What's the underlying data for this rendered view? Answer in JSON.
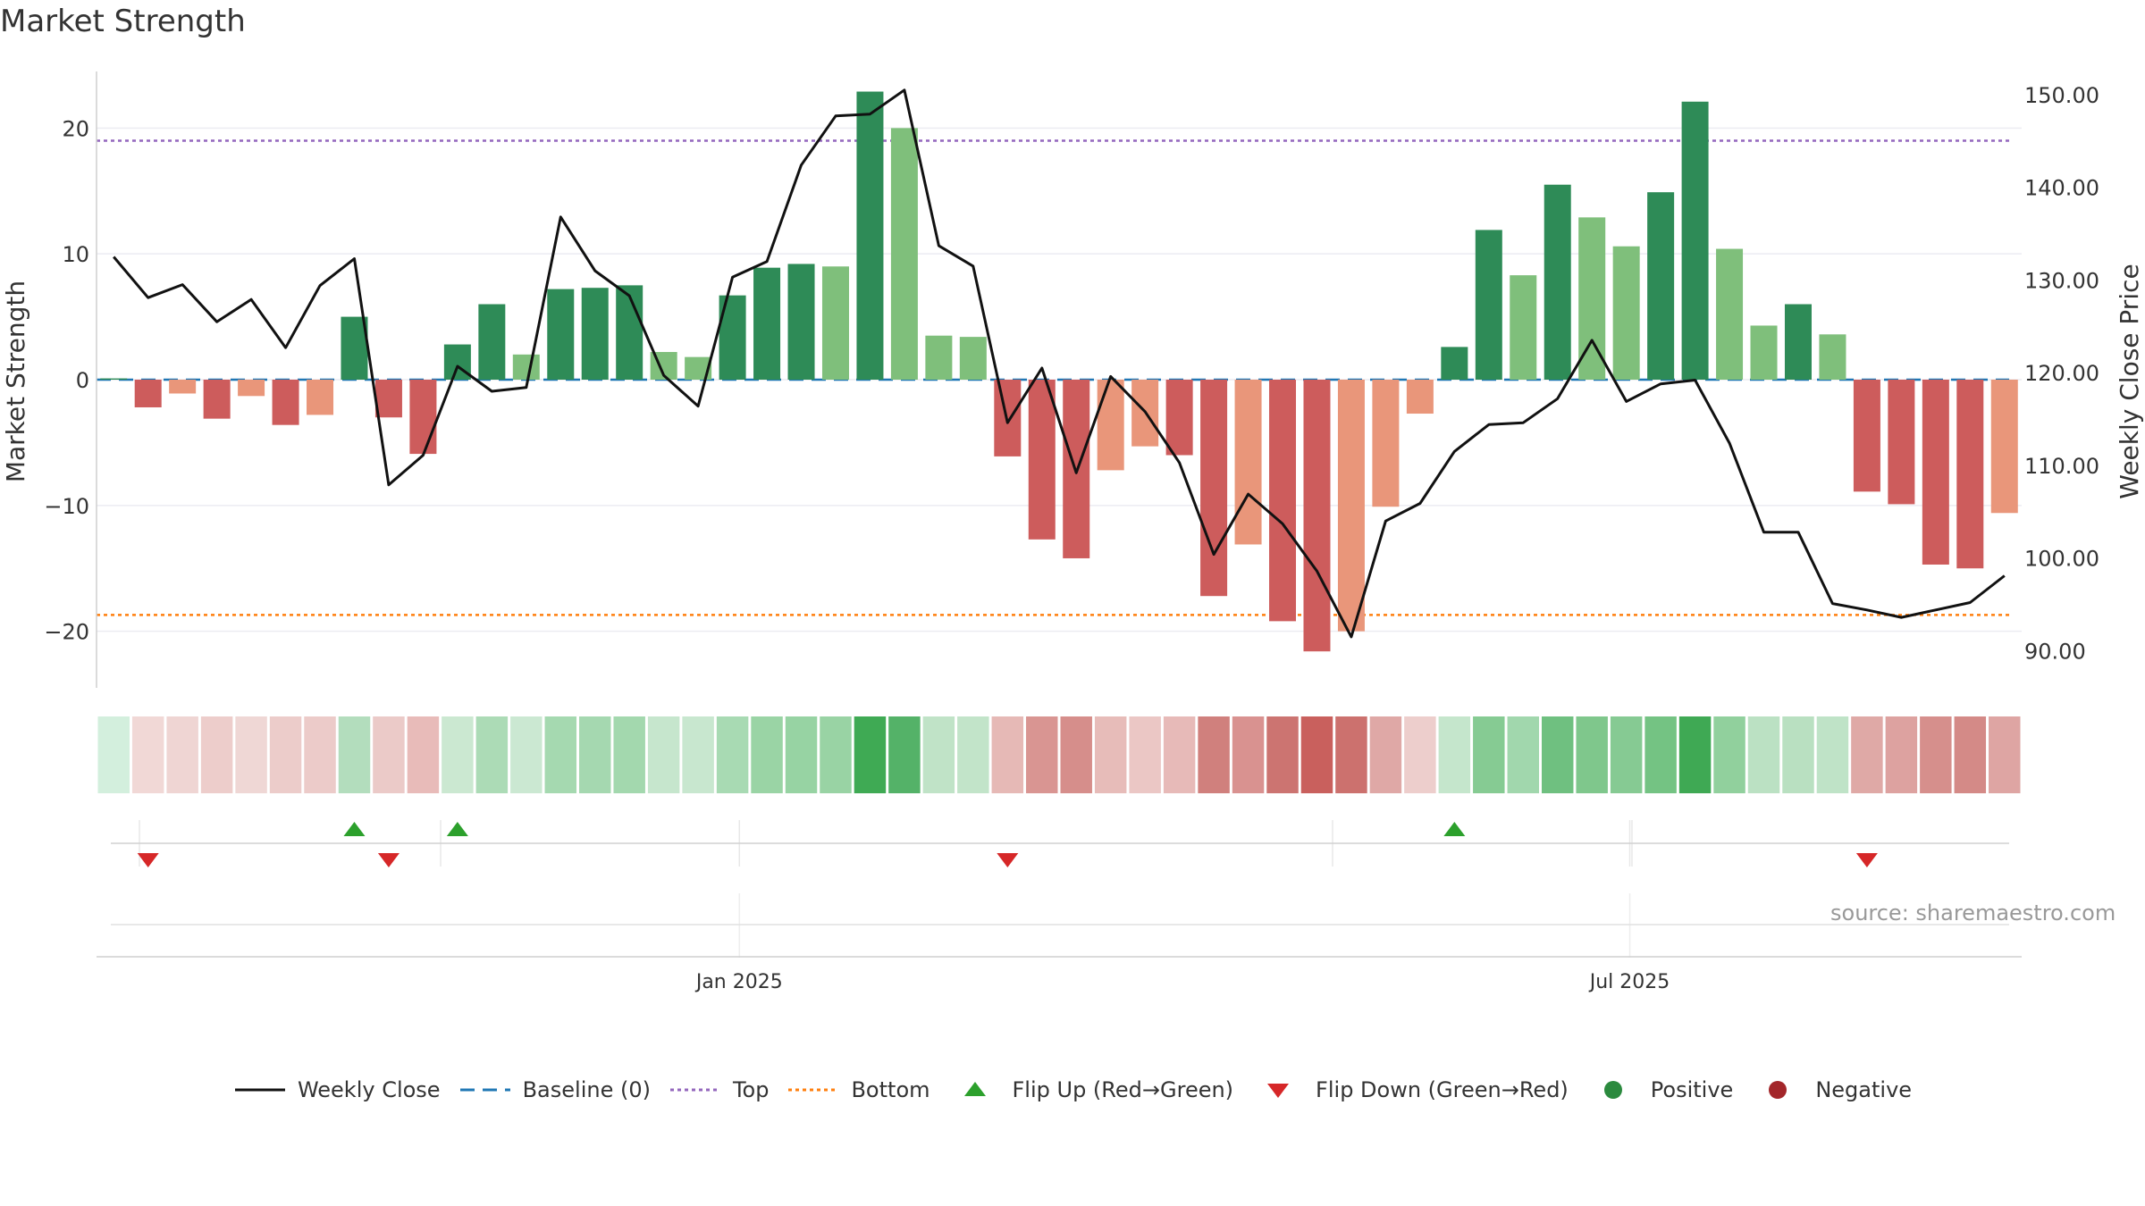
{
  "title": "Market Strength",
  "source": "source: sharemaestro.com",
  "legend": [
    {
      "label": "Weekly Close",
      "icon": "line-solid",
      "color": "#111111"
    },
    {
      "label": "Baseline (0)",
      "icon": "line-dashed",
      "color": "#1f77b4"
    },
    {
      "label": "Top",
      "icon": "line-dotted",
      "color": "#9467bd"
    },
    {
      "label": "Bottom",
      "icon": "line-dotted",
      "color": "#ff7f0e"
    },
    {
      "label": "Flip Up (Red→Green)",
      "icon": "triangle-up",
      "color": "#2ca02c"
    },
    {
      "label": "Flip Down (Green→Red)",
      "icon": "triangle-down",
      "color": "#d62728"
    },
    {
      "label": "Positive",
      "icon": "circle",
      "color": "#2b8a3e"
    },
    {
      "label": "Negative",
      "icon": "circle",
      "color": "#a3262a"
    }
  ],
  "chart_data": {
    "type": "bar",
    "title": "Market Strength",
    "ylabel": "Market Strength",
    "ylabel_right": "Weekly Close Price",
    "ylim": [
      -24.5,
      24.5
    ],
    "ylim_right": [
      86.0,
      152.5
    ],
    "yticks": [
      20,
      10,
      0,
      -10,
      -20
    ],
    "ytick_labels": [
      "20",
      "10",
      "0",
      "−10",
      "−20"
    ],
    "yticks_right": [
      150,
      140,
      130,
      120,
      110,
      100,
      90
    ],
    "ytick_labels_right": [
      "150.00",
      "140.00",
      "130.00",
      "120.00",
      "110.00",
      "100.00",
      "90.00"
    ],
    "x_tick_labels": [
      "Jan 2025",
      "Jul 2025"
    ],
    "x_tick_weeks": [
      18.7,
      44.6
    ],
    "reference_lines": {
      "baseline": 0,
      "top": 19,
      "bottom": -18.7
    },
    "colors": {
      "positive_strong": "#2e8b57",
      "positive_light": "#7fbf7b",
      "negative_strong": "#cd5c5c",
      "negative_light": "#e9967a",
      "close_line": "#111111",
      "baseline": "#1f77b4",
      "top": "#9467bd",
      "bottom": "#ff7f0e",
      "flip_up": "#2ca02c",
      "flip_down": "#d62728"
    },
    "series": [
      {
        "name": "Market Strength",
        "values": [
          0.1,
          -2.2,
          -1.1,
          -3.1,
          -1.3,
          -3.6,
          -2.8,
          5.0,
          -3.0,
          -5.9,
          2.8,
          6.0,
          2.0,
          7.2,
          7.3,
          7.5,
          2.2,
          1.8,
          6.7,
          8.9,
          9.2,
          9.0,
          22.9,
          20.0,
          3.5,
          3.4,
          -6.1,
          -12.7,
          -14.2,
          -7.2,
          -5.3,
          -6.0,
          -17.2,
          -13.1,
          -19.2,
          -21.6,
          -20.0,
          -10.1,
          -2.7,
          2.6,
          11.9,
          8.3,
          15.5,
          12.9,
          10.6,
          14.9,
          22.1,
          10.4,
          4.3,
          6.0,
          3.6,
          -8.9,
          -9.9,
          -14.7,
          -15.0,
          -10.6
        ]
      },
      {
        "name": "Weekly Close",
        "x": [
          0.5,
          1.5,
          2.5,
          3.5,
          4.5,
          5.5,
          6.5,
          7.5,
          8.5,
          9.5,
          10.5,
          11.5,
          12.5,
          13.5,
          14.5,
          15.5,
          16.5,
          17.5,
          18.5,
          19.5,
          20.5,
          21.5,
          22.5,
          23.5,
          24.5,
          25.5,
          26.5,
          27.5,
          28.5,
          29.5,
          30.5,
          31.5,
          32.5,
          33.5,
          34.5,
          35.5,
          36.5,
          37.5,
          38.5,
          39.5,
          40.5,
          41.5,
          42.5,
          43.5,
          44.5,
          45.5,
          46.5,
          47.5,
          48.5,
          49.5,
          50.5,
          51.5,
          52.5,
          53.5,
          54.5,
          55.5
        ],
        "values": [
          132.5,
          128.1,
          129.5,
          125.5,
          127.9,
          122.7,
          129.4,
          132.3,
          107.9,
          111.1,
          120.7,
          118.0,
          118.4,
          136.8,
          131.0,
          128.3,
          119.7,
          116.4,
          130.3,
          132.0,
          142.4,
          147.7,
          147.9,
          150.5,
          133.7,
          131.5,
          114.6,
          120.5,
          109.2,
          119.6,
          115.8,
          110.3,
          100.4,
          106.9,
          103.7,
          98.6,
          91.5,
          104.0,
          105.9,
          111.5,
          114.4,
          114.6,
          117.2,
          123.5,
          116.9,
          118.8,
          119.2,
          112.4,
          102.8,
          102.8,
          95.1,
          94.4,
          93.6,
          94.4,
          95.2,
          98.1
        ]
      }
    ],
    "heat_strip": [
      "#d3efdd",
      "#f1d8d6",
      "#efd5d3",
      "#edcdcb",
      "#efd7d5",
      "#ecccca",
      "#eccbc9",
      "#b3ddbd",
      "#ebcac8",
      "#e8bbb9",
      "#cbe8d1",
      "#acdbb6",
      "#cbe8d2",
      "#a5d9b0",
      "#a5d8b0",
      "#a3d8ae",
      "#c6e6cd",
      "#c8e7cf",
      "#a8dab3",
      "#9ad4a5",
      "#97d3a3",
      "#99d3a4",
      "#3faa54",
      "#54b268",
      "#c0e3c7",
      "#c2e4c9",
      "#e6b9b6",
      "#d99592",
      "#d68e8b",
      "#e7bcb9",
      "#ebc7c5",
      "#e7bab8",
      "#d0807d",
      "#d99290",
      "#cc7471",
      "#c9605d",
      "#cc716e",
      "#dfa8a6",
      "#edcecc",
      "#c5e6cc",
      "#86cb93",
      "#a1d7ad",
      "#6fc080",
      "#7fc78c",
      "#86ca93",
      "#74c383",
      "#3fa954",
      "#91d09d",
      "#bbe1c3",
      "#b9e0c1",
      "#bfe3c7",
      "#dfa9a6",
      "#dda2a0",
      "#d68f8c",
      "#d48a87",
      "#dea5a3"
    ],
    "flip_up_weeks": [
      7,
      10,
      39
    ],
    "flip_down_weeks": [
      1,
      8,
      26,
      51
    ]
  }
}
